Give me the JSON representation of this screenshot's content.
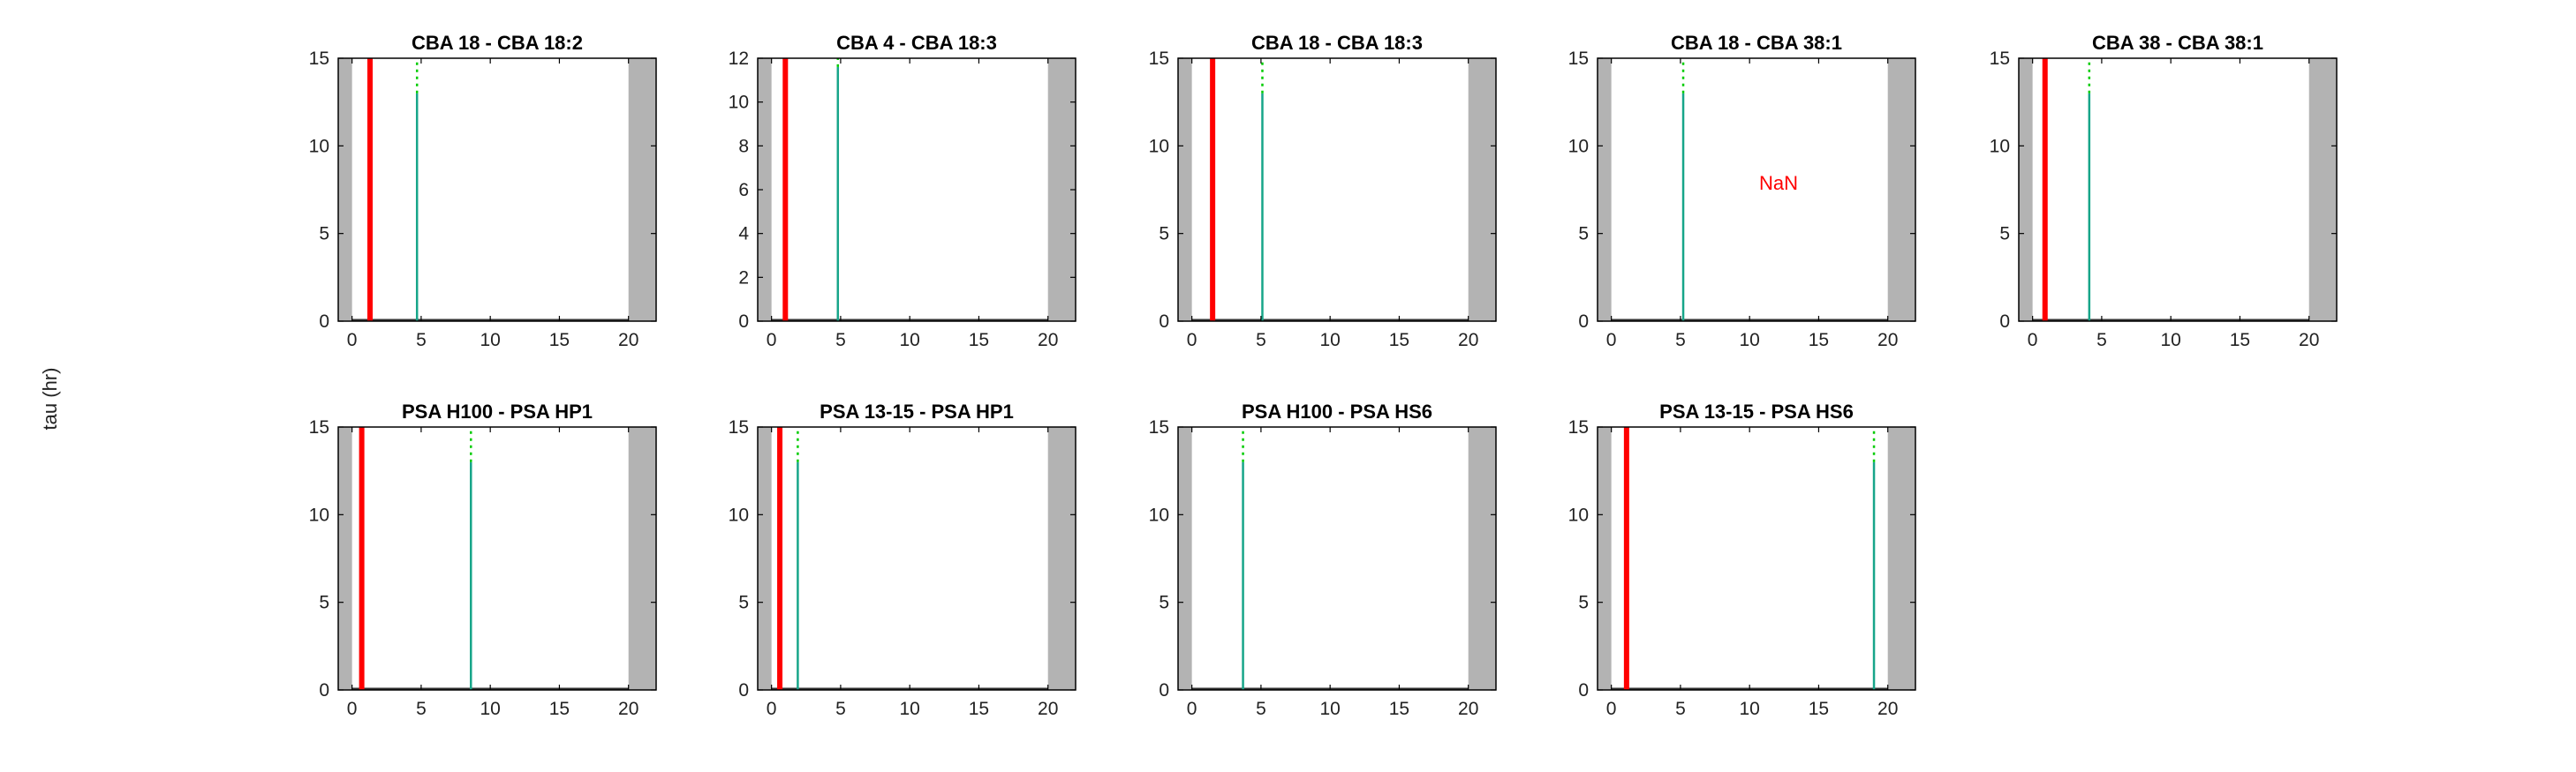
{
  "figure": {
    "ylabel": "tau (hr)"
  },
  "colors": {
    "shade": "#b3b3b3",
    "red_line": "#ff0000",
    "teal_line": "#17a589",
    "green_dotted": "#00cc00",
    "axis": "#000000",
    "nan_text": "#ff0000"
  },
  "chart_data": [
    {
      "type": "line",
      "title": "CBA 18 - CBA 18:2",
      "xlim": [
        -1,
        22
      ],
      "ylim": [
        0,
        15
      ],
      "xticks": [
        0,
        5,
        10,
        15,
        20
      ],
      "yticks": [
        0,
        5,
        10,
        15
      ],
      "shade_left": [
        -1,
        0
      ],
      "shade_right": [
        20,
        22
      ],
      "red_x": 1.3,
      "teal_x": 4.7,
      "teal_y": 13,
      "annotation": ""
    },
    {
      "type": "line",
      "title": "CBA 4 - CBA 18:3",
      "xlim": [
        -1,
        22
      ],
      "ylim": [
        0,
        12
      ],
      "xticks": [
        0,
        5,
        10,
        15,
        20
      ],
      "yticks": [
        0,
        2,
        4,
        6,
        8,
        10,
        12
      ],
      "shade_left": [
        -1,
        0
      ],
      "shade_right": [
        20,
        22
      ],
      "red_x": 1.0,
      "teal_x": 4.8,
      "teal_y": 11.6,
      "annotation": ""
    },
    {
      "type": "line",
      "title": "CBA 18 - CBA 18:3",
      "xlim": [
        -1,
        22
      ],
      "ylim": [
        0,
        15
      ],
      "xticks": [
        0,
        5,
        10,
        15,
        20
      ],
      "yticks": [
        0,
        5,
        10,
        15
      ],
      "shade_left": [
        -1,
        0
      ],
      "shade_right": [
        20,
        22
      ],
      "red_x": 1.5,
      "teal_x": 5.1,
      "teal_y": 13,
      "annotation": ""
    },
    {
      "type": "line",
      "title": "CBA 18 - CBA 38:1",
      "xlim": [
        -1,
        22
      ],
      "ylim": [
        0,
        15
      ],
      "xticks": [
        0,
        5,
        10,
        15,
        20
      ],
      "yticks": [
        0,
        5,
        10,
        15
      ],
      "shade_left": [
        -1,
        0
      ],
      "shade_right": [
        20,
        22
      ],
      "red_x": null,
      "teal_x": 5.2,
      "teal_y": 13,
      "annotation": "NaN",
      "annotation_x": 12.1,
      "annotation_y": 7.5
    },
    {
      "type": "line",
      "title": "CBA 38 - CBA 38:1",
      "xlim": [
        -1,
        22
      ],
      "ylim": [
        0,
        15
      ],
      "xticks": [
        0,
        5,
        10,
        15,
        20
      ],
      "yticks": [
        0,
        5,
        10,
        15
      ],
      "shade_left": [
        -1,
        0
      ],
      "shade_right": [
        20,
        22
      ],
      "red_x": 0.9,
      "teal_x": 4.1,
      "teal_y": 13,
      "annotation": ""
    },
    {
      "type": "line",
      "title": "PSA H100 - PSA HP1",
      "xlim": [
        -1,
        22
      ],
      "ylim": [
        0,
        15
      ],
      "xticks": [
        0,
        5,
        10,
        15,
        20
      ],
      "yticks": [
        0,
        5,
        10,
        15
      ],
      "shade_left": [
        -1,
        0
      ],
      "shade_right": [
        20,
        22
      ],
      "red_x": 0.7,
      "teal_x": 8.6,
      "teal_y": 13,
      "annotation": ""
    },
    {
      "type": "line",
      "title": "PSA 13-15 - PSA HP1",
      "xlim": [
        -1,
        22
      ],
      "ylim": [
        0,
        15
      ],
      "xticks": [
        0,
        5,
        10,
        15,
        20
      ],
      "yticks": [
        0,
        5,
        10,
        15
      ],
      "shade_left": [
        -1,
        0
      ],
      "shade_right": [
        20,
        22
      ],
      "red_x": 0.6,
      "teal_x": 1.9,
      "teal_y": 13,
      "annotation": ""
    },
    {
      "type": "line",
      "title": "PSA H100 - PSA HS6",
      "xlim": [
        -1,
        22
      ],
      "ylim": [
        0,
        15
      ],
      "xticks": [
        0,
        5,
        10,
        15,
        20
      ],
      "yticks": [
        0,
        5,
        10,
        15
      ],
      "shade_left": [
        -1,
        0
      ],
      "shade_right": [
        20,
        22
      ],
      "red_x": null,
      "teal_x": 3.7,
      "teal_y": 13,
      "annotation": ""
    },
    {
      "type": "line",
      "title": "PSA 13-15 - PSA HS6",
      "xlim": [
        -1,
        22
      ],
      "ylim": [
        0,
        15
      ],
      "xticks": [
        0,
        5,
        10,
        15,
        20
      ],
      "yticks": [
        0,
        5,
        10,
        15
      ],
      "shade_left": [
        -1,
        0
      ],
      "shade_right": [
        20,
        22
      ],
      "red_x": 1.1,
      "teal_x": 19.0,
      "teal_y": 13,
      "annotation": ""
    }
  ]
}
